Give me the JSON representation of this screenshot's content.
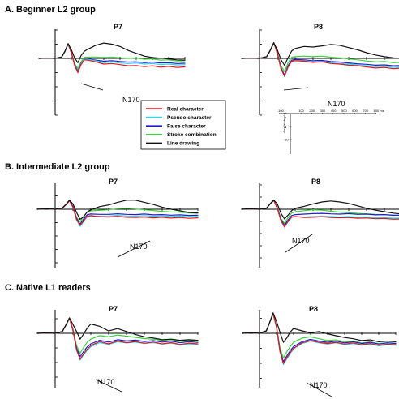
{
  "figure": {
    "section_titles": [
      "A. Beginner L2 group",
      "B. Intermediate L2 group",
      "C. Native L1 readers"
    ],
    "electrodes": [
      "P7",
      "P8"
    ],
    "component_label": "N170"
  },
  "legend": {
    "entries": [
      {
        "label": "Real character",
        "color": "#e8141c"
      },
      {
        "label": "Pseudo character",
        "color": "#2ad7e8"
      },
      {
        "label": "False character",
        "color": "#1c1ccc"
      },
      {
        "label": "Stroke combination",
        "color": "#3ad13a"
      },
      {
        "label": "Line drawing",
        "color": "#111111"
      }
    ]
  },
  "scale_bar": {
    "x_ticks": [
      "-100",
      "100",
      "200",
      "300",
      "400",
      "500",
      "600",
      "700",
      "800 ms"
    ],
    "y_ticks": [
      "-5",
      "-10"
    ],
    "y_title": "Amplitude(μV)"
  },
  "chart_data": [
    {
      "type": "line",
      "group": "A. Beginner L2 group",
      "title": "P7",
      "xlabel": "",
      "ylabel": "",
      "x_unit": "ms",
      "y_unit": "μV",
      "x": [
        -100,
        -50,
        0,
        40,
        60,
        80,
        100,
        120,
        140,
        160,
        180,
        200,
        250,
        300,
        350,
        400,
        450,
        500,
        550,
        600,
        650,
        700,
        750,
        800
      ],
      "series": [
        {
          "name": "Real character",
          "values": [
            0,
            0.1,
            0,
            0.5,
            2.5,
            5.2,
            2,
            -2.5,
            -5,
            -2.2,
            -0.5,
            -0.6,
            -1.2,
            -2,
            -1.8,
            -2.2,
            -2.6,
            -2.5,
            -2.9,
            -2.6,
            -3.1,
            -2.8,
            -3.2,
            -3.0
          ]
        },
        {
          "name": "Pseudo character",
          "values": [
            0,
            0.1,
            0,
            0.4,
            2.3,
            5.0,
            1.8,
            -2.4,
            -4.8,
            -2.0,
            -0.3,
            -0.3,
            -0.8,
            -1.5,
            -1.2,
            -1.6,
            -1.8,
            -1.6,
            -2.0,
            -1.8,
            -2.2,
            -2.0,
            -2.3,
            -2.2
          ]
        },
        {
          "name": "False character",
          "values": [
            0,
            0.1,
            0,
            0.4,
            2.4,
            5.0,
            1.9,
            -2.2,
            -4.4,
            -1.8,
            -0.2,
            -0.2,
            -0.6,
            -1.0,
            -0.8,
            -1.1,
            -1.3,
            -1.2,
            -1.5,
            -1.3,
            -1.6,
            -1.5,
            -1.8,
            -1.7
          ]
        },
        {
          "name": "Stroke combination",
          "values": [
            0,
            0.1,
            0,
            0.4,
            2.3,
            4.9,
            2.0,
            -1.8,
            -3.6,
            -1.2,
            0.4,
            0.5,
            0.5,
            0.3,
            0.5,
            0.2,
            0,
            0.1,
            -0.3,
            -0.2,
            -0.6,
            -0.5,
            -0.9,
            -0.8
          ]
        },
        {
          "name": "Line drawing",
          "values": [
            0,
            0.1,
            0,
            0.5,
            2.5,
            5.2,
            3.0,
            0.2,
            -1.5,
            1.0,
            2.5,
            3.2,
            4.6,
            5.4,
            5.0,
            4.2,
            2.8,
            1.8,
            0.8,
            0.3,
            0.1,
            -0.2,
            -0.5,
            -0.6
          ]
        }
      ]
    },
    {
      "type": "line",
      "group": "A. Beginner L2 group",
      "title": "P8",
      "xlabel": "",
      "ylabel": "",
      "x_unit": "ms",
      "y_unit": "μV",
      "x": [
        -100,
        -50,
        0,
        40,
        60,
        80,
        100,
        120,
        140,
        160,
        180,
        200,
        250,
        300,
        350,
        400,
        450,
        500,
        550,
        600,
        650,
        700,
        750,
        800
      ],
      "series": [
        {
          "name": "Real character",
          "values": [
            0,
            0.1,
            0,
            0.6,
            2.8,
            5.5,
            1.8,
            -3.5,
            -6.2,
            -3.0,
            -1.0,
            -0.8,
            -1.0,
            -1.4,
            -1.2,
            -1.8,
            -2.0,
            -2.4,
            -2.6,
            -3.0,
            -3.4,
            -3.2,
            -3.6,
            -3.4
          ]
        },
        {
          "name": "Pseudo character",
          "values": [
            0,
            0.1,
            0,
            0.6,
            2.7,
            5.4,
            1.6,
            -3.6,
            -6.4,
            -3.2,
            -1.1,
            -0.8,
            -0.9,
            -1.2,
            -1.1,
            -1.5,
            -1.8,
            -2.0,
            -2.3,
            -2.6,
            -2.9,
            -2.8,
            -3.1,
            -3.0
          ]
        },
        {
          "name": "False character",
          "values": [
            0,
            0.1,
            0,
            0.6,
            2.8,
            5.5,
            1.8,
            -3.2,
            -5.8,
            -2.6,
            -0.6,
            -0.4,
            -0.5,
            -0.8,
            -0.7,
            -1.1,
            -1.3,
            -1.6,
            -1.9,
            -2.1,
            -2.4,
            -2.3,
            -2.6,
            -2.5
          ]
        },
        {
          "name": "Stroke combination",
          "values": [
            0,
            0.1,
            0,
            0.6,
            2.7,
            5.3,
            1.9,
            -2.6,
            -4.6,
            -1.6,
            0.4,
            0.6,
            0.8,
            0.6,
            0.8,
            0.4,
            0.2,
            -0.2,
            -0.5,
            -0.9,
            -1.2,
            -1.1,
            -1.5,
            -1.4
          ]
        },
        {
          "name": "Line drawing",
          "values": [
            0,
            0.1,
            0,
            0.6,
            2.8,
            5.5,
            3.0,
            -0.4,
            -2.4,
            0.2,
            2.6,
            3.5,
            4.2,
            4.0,
            4.4,
            4.9,
            4.6,
            3.8,
            3.0,
            2.0,
            1.2,
            0.6,
            0.2,
            -0.1
          ]
        }
      ]
    },
    {
      "type": "line",
      "group": "B. Intermediate L2 group",
      "title": "P7",
      "xlabel": "",
      "ylabel": "",
      "x_unit": "ms",
      "y_unit": "μV",
      "x": [
        -100,
        -50,
        0,
        40,
        60,
        80,
        100,
        120,
        140,
        160,
        180,
        200,
        250,
        300,
        350,
        400,
        450,
        500,
        550,
        600,
        650,
        700,
        750,
        800
      ],
      "series": [
        {
          "name": "Real character",
          "values": [
            0,
            0.2,
            0,
            0.4,
            1.6,
            3.2,
            0.8,
            -3.8,
            -6.0,
            -4.2,
            -2.6,
            -2.4,
            -2.8,
            -2.9,
            -2.7,
            -3.0,
            -3.1,
            -2.9,
            -3.2,
            -3.0,
            -3.3,
            -3.1,
            -3.4,
            -3.2
          ]
        },
        {
          "name": "Pseudo character",
          "values": [
            0,
            0.2,
            0,
            0.4,
            1.6,
            3.1,
            0.6,
            -4.0,
            -6.4,
            -4.6,
            -2.8,
            -2.5,
            -2.6,
            -2.5,
            -2.3,
            -2.5,
            -2.6,
            -2.4,
            -2.6,
            -2.5,
            -2.7,
            -2.6,
            -2.8,
            -2.7
          ]
        },
        {
          "name": "False character",
          "values": [
            0,
            0.2,
            0,
            0.4,
            1.7,
            3.3,
            1.0,
            -3.4,
            -5.6,
            -3.6,
            -2.0,
            -1.8,
            -1.9,
            -1.9,
            -1.7,
            -1.9,
            -2.0,
            -1.8,
            -2.1,
            -2.0,
            -2.2,
            -2.1,
            -2.3,
            -2.2
          ]
        },
        {
          "name": "Stroke combination",
          "values": [
            0,
            0.2,
            0,
            0.4,
            1.6,
            3.1,
            1.0,
            -3.0,
            -4.8,
            -2.6,
            -1.0,
            -0.6,
            -0.4,
            -0.2,
            0.2,
            0.4,
            0.1,
            -0.2,
            -0.5,
            -0.8,
            -1.0,
            -1.1,
            -1.4,
            -1.5
          ]
        },
        {
          "name": "Line drawing",
          "values": [
            0,
            0.2,
            0,
            0.5,
            1.8,
            3.4,
            2.0,
            -1.2,
            -3.8,
            -2.8,
            -1.0,
            -0.2,
            1.0,
            1.6,
            2.6,
            3.4,
            3.4,
            2.6,
            1.8,
            0.8,
            0.0,
            -0.6,
            -1.2,
            -1.4
          ]
        }
      ]
    },
    {
      "type": "line",
      "group": "B. Intermediate L2 group",
      "title": "P8",
      "xlabel": "",
      "ylabel": "",
      "x_unit": "ms",
      "y_unit": "μV",
      "x": [
        -100,
        -50,
        0,
        40,
        60,
        80,
        100,
        120,
        140,
        160,
        180,
        200,
        250,
        300,
        350,
        400,
        450,
        500,
        550,
        600,
        650,
        700,
        750,
        800
      ],
      "series": [
        {
          "name": "Real character",
          "values": [
            0,
            0.2,
            0,
            0.5,
            2.2,
            3.6,
            0.4,
            -4.6,
            -7.2,
            -5.0,
            -3.2,
            -3.0,
            -3.4,
            -3.3,
            -3.1,
            -3.4,
            -3.5,
            -3.4,
            -3.7,
            -3.6,
            -3.9,
            -3.8,
            -4.1,
            -4.0
          ]
        },
        {
          "name": "Pseudo character",
          "values": [
            0,
            0.2,
            0,
            0.5,
            2.1,
            3.5,
            0.3,
            -4.8,
            -7.4,
            -5.2,
            -3.4,
            -3.0,
            -3.2,
            -3.0,
            -2.8,
            -3.0,
            -3.2,
            -3.0,
            -3.3,
            -3.2,
            -3.5,
            -3.4,
            -3.7,
            -3.6
          ]
        },
        {
          "name": "False character",
          "values": [
            0,
            0.2,
            0,
            0.5,
            2.2,
            3.7,
            0.6,
            -4.2,
            -6.6,
            -4.4,
            -2.6,
            -2.2,
            -2.0,
            -1.8,
            -1.7,
            -1.9,
            -2.0,
            -1.8,
            -2.1,
            -2.0,
            -2.3,
            -2.2,
            -2.5,
            -2.4
          ]
        },
        {
          "name": "Stroke combination",
          "values": [
            0,
            0.2,
            0,
            0.5,
            2.1,
            3.5,
            0.8,
            -3.8,
            -5.8,
            -3.4,
            -1.6,
            -1.0,
            -0.6,
            -0.2,
            -0.4,
            -0.8,
            -1.2,
            -1.4,
            -1.7,
            -1.9,
            -2.1,
            -2.2,
            -2.4,
            -2.5
          ]
        },
        {
          "name": "Line drawing",
          "values": [
            0,
            0.2,
            0,
            0.5,
            2.3,
            3.8,
            2.2,
            -1.6,
            -4.0,
            -2.4,
            -0.6,
            0.4,
            1.2,
            2.2,
            3.0,
            3.4,
            3.0,
            2.4,
            1.4,
            0.4,
            -0.4,
            -1.0,
            -1.6,
            -2.0
          ]
        }
      ]
    },
    {
      "type": "line",
      "group": "C. Native L1 readers",
      "title": "P7",
      "xlabel": "",
      "ylabel": "",
      "x_unit": "ms",
      "y_unit": "μV",
      "x": [
        -100,
        -50,
        0,
        40,
        60,
        80,
        100,
        120,
        140,
        160,
        180,
        200,
        250,
        300,
        350,
        400,
        450,
        500,
        550,
        600,
        650,
        700,
        750,
        800
      ],
      "series": [
        {
          "name": "Real character",
          "values": [
            0,
            0.1,
            0,
            0.6,
            2.8,
            5.2,
            1.0,
            -5.6,
            -8.8,
            -7.0,
            -5.4,
            -4.2,
            -2.8,
            -3.6,
            -2.6,
            -3.2,
            -2.8,
            -3.4,
            -3.0,
            -3.6,
            -3.2,
            -3.8,
            -3.4,
            -3.6
          ]
        },
        {
          "name": "Pseudo character",
          "values": [
            0,
            0.1,
            0,
            0.6,
            2.7,
            5.0,
            0.8,
            -5.8,
            -9.2,
            -7.4,
            -5.8,
            -4.6,
            -3.2,
            -3.8,
            -2.9,
            -3.3,
            -3.0,
            -3.5,
            -3.2,
            -3.7,
            -3.4,
            -3.9,
            -3.6,
            -3.8
          ]
        },
        {
          "name": "False character",
          "values": [
            0,
            0.1,
            0,
            0.6,
            2.8,
            5.1,
            1.2,
            -5.0,
            -8.0,
            -6.2,
            -4.6,
            -3.6,
            -2.4,
            -3.0,
            -2.2,
            -2.6,
            -2.3,
            -2.8,
            -2.5,
            -3.0,
            -2.7,
            -3.2,
            -2.9,
            -3.1
          ]
        },
        {
          "name": "Stroke combination",
          "values": [
            0,
            0.1,
            0,
            0.6,
            2.7,
            5.0,
            1.4,
            -4.2,
            -6.8,
            -4.8,
            -3.0,
            -2.0,
            -0.8,
            -1.2,
            -0.6,
            -1.0,
            -1.4,
            -1.8,
            -2.0,
            -2.4,
            -2.2,
            -2.6,
            -2.4,
            -2.6
          ]
        },
        {
          "name": "Line drawing",
          "values": [
            0,
            0.1,
            0,
            0.6,
            2.8,
            5.3,
            3.0,
            0.6,
            -2.0,
            -0.2,
            1.8,
            3.2,
            2.4,
            0.8,
            1.6,
            0.6,
            -0.4,
            -1.2,
            -1.6,
            -2.2,
            -2.0,
            -2.4,
            -2.2,
            -2.4
          ]
        }
      ]
    },
    {
      "type": "line",
      "group": "C. Native L1 readers",
      "title": "P8",
      "xlabel": "",
      "ylabel": "",
      "x_unit": "ms",
      "y_unit": "μV",
      "x": [
        -100,
        -50,
        0,
        40,
        60,
        80,
        100,
        120,
        140,
        160,
        180,
        200,
        250,
        300,
        350,
        400,
        450,
        500,
        550,
        600,
        650,
        700,
        750,
        800
      ],
      "series": [
        {
          "name": "Real character",
          "values": [
            0,
            0.2,
            0,
            0.8,
            3.6,
            6.6,
            2.0,
            -6.0,
            -10.0,
            -8.2,
            -6.4,
            -5.0,
            -3.2,
            -2.4,
            -3.0,
            -3.4,
            -3.0,
            -3.6,
            -3.2,
            -3.8,
            -3.4,
            -4.0,
            -3.6,
            -3.8
          ]
        },
        {
          "name": "Pseudo character",
          "values": [
            0,
            0.2,
            0,
            0.8,
            3.5,
            6.5,
            1.8,
            -6.2,
            -10.4,
            -8.6,
            -6.8,
            -5.2,
            -3.4,
            -2.6,
            -3.2,
            -3.6,
            -3.2,
            -3.8,
            -3.4,
            -4.0,
            -3.6,
            -4.2,
            -3.8,
            -4.0
          ]
        },
        {
          "name": "False character",
          "values": [
            0,
            0.2,
            0,
            0.8,
            3.6,
            6.6,
            2.2,
            -5.6,
            -9.4,
            -7.6,
            -5.8,
            -4.4,
            -2.8,
            -2.0,
            -2.6,
            -3.0,
            -2.6,
            -3.2,
            -2.8,
            -3.4,
            -3.0,
            -3.6,
            -3.2,
            -3.4
          ]
        },
        {
          "name": "Stroke combination",
          "values": [
            0,
            0.2,
            0,
            0.8,
            3.5,
            6.4,
            2.4,
            -4.8,
            -8.2,
            -6.2,
            -4.4,
            -3.0,
            -1.6,
            -1.2,
            -1.8,
            -2.4,
            -2.2,
            -2.8,
            -2.6,
            -3.2,
            -2.9,
            -3.4,
            -3.1,
            -3.3
          ]
        },
        {
          "name": "Line drawing",
          "values": [
            0,
            0.2,
            0,
            0.8,
            3.7,
            6.8,
            4.0,
            0.4,
            -3.0,
            -1.6,
            0.4,
            1.6,
            0.8,
            0.2,
            0.6,
            -0.2,
            -0.8,
            -1.4,
            -1.8,
            -2.4,
            -2.2,
            -2.8,
            -2.6,
            -2.8
          ]
        }
      ]
    }
  ]
}
